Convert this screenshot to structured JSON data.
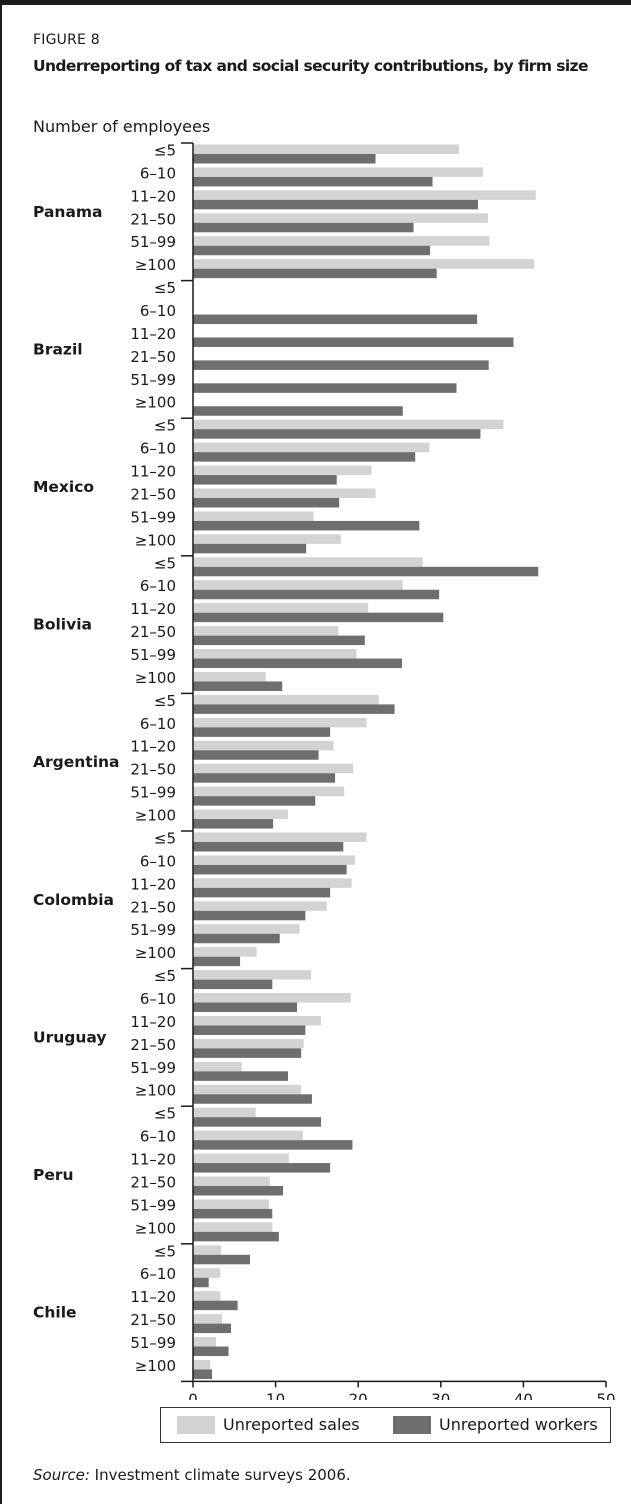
{
  "figure": {
    "label": "FIGURE 8",
    "title": "Underreporting of tax and social security contributions, by firm size",
    "source_label": "Source:",
    "source_text": " Investment climate surveys 2006."
  },
  "colors": {
    "unreported_sales": "#d3d3d3",
    "unreported_workers": "#6e6e6e",
    "axis": "#1a1a1a"
  },
  "chart_data": {
    "type": "bar",
    "orientation": "horizontal",
    "ylabel": "Number of employees",
    "xlim": [
      0,
      50
    ],
    "xticks": [
      0,
      10,
      20,
      30,
      40,
      50
    ],
    "grid": false,
    "legend_position": "bottom",
    "categories": [
      "≤5",
      "6–10",
      "11–20",
      "21–50",
      "51–99",
      "≥100"
    ],
    "series": [
      {
        "name": "Unreported sales",
        "color_key": "unreported_sales"
      },
      {
        "name": "Unreported workers",
        "color_key": "unreported_workers"
      }
    ],
    "groups": [
      {
        "country": "Panama",
        "sales": [
          32.2,
          35.1,
          41.5,
          35.7,
          35.9,
          41.3
        ],
        "workers": [
          22.1,
          29.0,
          34.5,
          26.7,
          28.7,
          29.5
        ]
      },
      {
        "country": "Brazil",
        "sales": [
          null,
          null,
          null,
          null,
          null,
          null
        ],
        "workers": [
          null,
          34.4,
          38.8,
          35.8,
          31.9,
          25.4
        ]
      },
      {
        "country": "Mexico",
        "sales": [
          37.6,
          28.6,
          21.6,
          22.1,
          14.6,
          17.9
        ],
        "workers": [
          34.8,
          26.9,
          17.4,
          17.7,
          27.4,
          13.7
        ]
      },
      {
        "country": "Bolivia",
        "sales": [
          27.8,
          25.4,
          21.2,
          17.6,
          19.8,
          8.8
        ],
        "workers": [
          41.8,
          29.8,
          30.3,
          20.8,
          25.3,
          10.8
        ]
      },
      {
        "country": "Argentina",
        "sales": [
          22.5,
          21.0,
          17.0,
          19.4,
          18.3,
          11.5
        ],
        "workers": [
          24.4,
          16.6,
          15.2,
          17.2,
          14.8,
          9.7
        ]
      },
      {
        "country": "Colombia",
        "sales": [
          21.0,
          19.6,
          19.2,
          16.2,
          12.9,
          7.7
        ],
        "workers": [
          18.2,
          18.6,
          16.6,
          13.6,
          10.5,
          5.7
        ]
      },
      {
        "country": "Uruguay",
        "sales": [
          14.3,
          19.1,
          15.5,
          13.4,
          5.9,
          13.1
        ],
        "workers": [
          9.6,
          12.6,
          13.6,
          13.1,
          11.5,
          14.4
        ]
      },
      {
        "country": "Peru",
        "sales": [
          7.6,
          13.3,
          11.6,
          9.3,
          9.2,
          9.6
        ],
        "workers": [
          15.5,
          19.3,
          16.6,
          10.9,
          9.6,
          10.4
        ]
      },
      {
        "country": "Chile",
        "sales": [
          3.4,
          3.3,
          3.3,
          3.5,
          2.8,
          2.1
        ],
        "workers": [
          6.9,
          1.9,
          5.4,
          4.6,
          4.3,
          2.3
        ]
      }
    ]
  }
}
